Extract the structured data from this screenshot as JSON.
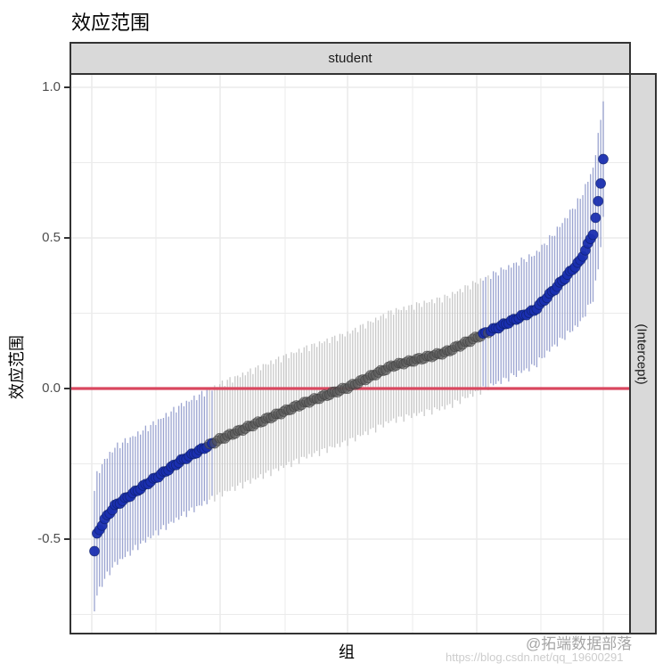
{
  "title": "效应范围",
  "facet": {
    "top": "student",
    "right": "(Intercept)"
  },
  "axes": {
    "ylabel": "效应范围",
    "xlabel": "组",
    "yticks": [
      {
        "value": 1.0,
        "label": "1.0"
      },
      {
        "value": 0.5,
        "label": "0.5"
      },
      {
        "value": 0.0,
        "label": "0.0"
      },
      {
        "value": -0.5,
        "label": "-0.5"
      }
    ]
  },
  "watermark": {
    "line1": "@拓端数据部落",
    "line2": "https://blog.csdn.net/qq_19600291"
  },
  "colors": {
    "significant_point": "#1a2fb0",
    "significant_point_edge": "#0a1a5c",
    "nonsignificant_point": "#5a5a5a",
    "significant_ci": "#9aa3d0",
    "nonsignificant_ci": "#c8c8c8",
    "reference_line": "#d9475f",
    "grid": "#ebebeb"
  },
  "chart_data": {
    "type": "scatter",
    "subtype": "caterpillar (sorted random effects with CI)",
    "title": "效应范围",
    "xlabel": "组",
    "ylabel": "效应范围",
    "facet_column": "student",
    "facet_row": "(Intercept)",
    "ylim": [
      -0.82,
      1.05
    ],
    "grid": true,
    "reference_line_y": 0.0,
    "n_groups": 200,
    "anchors": [
      [
        0.0,
        -0.54
      ],
      [
        0.005,
        -0.485
      ],
      [
        0.02,
        -0.435
      ],
      [
        0.04,
        -0.39
      ],
      [
        0.1,
        -0.32
      ],
      [
        0.17,
        -0.24
      ],
      [
        0.245,
        -0.17
      ],
      [
        0.34,
        -0.1
      ],
      [
        0.41,
        -0.05
      ],
      [
        0.5,
        0.005
      ],
      [
        0.585,
        0.075
      ],
      [
        0.69,
        0.12
      ],
      [
        0.77,
        0.185
      ],
      [
        0.865,
        0.26
      ],
      [
        0.91,
        0.34
      ],
      [
        0.955,
        0.425
      ],
      [
        0.98,
        0.515
      ],
      [
        0.993,
        0.65
      ],
      [
        1.0,
        0.765
      ]
    ],
    "ci_halfwidth": [
      [
        0.0,
        0.2
      ],
      [
        0.1,
        0.185
      ],
      [
        0.5,
        0.18
      ],
      [
        0.9,
        0.185
      ],
      [
        0.99,
        0.22
      ],
      [
        1.0,
        0.2
      ]
    ],
    "significant_rule": "CI does not cross 0 (blue); otherwise gray"
  }
}
